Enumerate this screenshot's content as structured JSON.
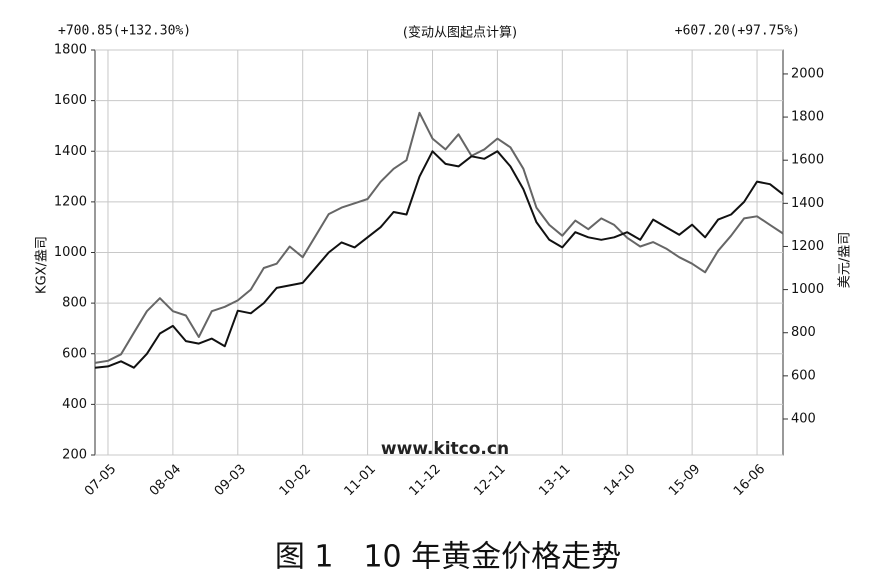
{
  "chart_data": {
    "type": "line",
    "subtitle": "(变动从图起点计算)",
    "left_note": "+700.85(+132.30%)",
    "right_note": "+607.20(+97.75%)",
    "ylabel": "KGX/盎司",
    "y2label": "美元/盎司",
    "watermark": "www.kitco.cn",
    "categories": [
      null,
      "07-05",
      null,
      null,
      null,
      null,
      "08-04",
      null,
      null,
      null,
      null,
      "09-03",
      null,
      null,
      null,
      null,
      "10-02",
      null,
      null,
      null,
      null,
      "11-01",
      null,
      null,
      null,
      null,
      "11-12",
      null,
      null,
      null,
      null,
      "12-11",
      null,
      null,
      null,
      null,
      "13-11",
      null,
      null,
      null,
      null,
      "14-10",
      null,
      null,
      null,
      null,
      "15-09",
      null,
      null,
      null,
      null,
      "16-06",
      null,
      null
    ],
    "series": [
      {
        "color": "#111111",
        "values": [
          545,
          550,
          570,
          545,
          600,
          680,
          710,
          650,
          640,
          660,
          630,
          770,
          760,
          800,
          860,
          870,
          880,
          940,
          1000,
          1040,
          1020,
          1060,
          1100,
          1160,
          1150,
          1300,
          1400,
          1350,
          1340,
          1380,
          1370,
          1400,
          1340,
          1250,
          1120,
          1050,
          1020,
          1080,
          1060,
          1050,
          1060,
          1080,
          1050,
          1130,
          1100,
          1070,
          1110,
          1060,
          1130,
          1150,
          1200,
          1280,
          1270,
          1230
        ]
      },
      {
        "color": "#666666",
        "axis": "y2",
        "values": [
          660,
          670,
          700,
          800,
          900,
          960,
          900,
          880,
          780,
          900,
          920,
          950,
          1000,
          1100,
          1120,
          1200,
          1150,
          1250,
          1350,
          1380,
          1400,
          1420,
          1500,
          1560,
          1600,
          1820,
          1700,
          1650,
          1720,
          1620,
          1650,
          1700,
          1660,
          1560,
          1380,
          1300,
          1250,
          1320,
          1280,
          1330,
          1300,
          1240,
          1200,
          1220,
          1190,
          1150,
          1120,
          1080,
          1180,
          1250,
          1330,
          1340,
          1300,
          1260
        ]
      }
    ],
    "ylim": [
      200,
      1800
    ],
    "yticks": [
      200,
      400,
      600,
      800,
      1000,
      1200,
      1400,
      1600,
      1800
    ],
    "y2lim": [
      233,
      2111
    ],
    "y2ticks": [
      400,
      600,
      800,
      1000,
      1200,
      1400,
      1600,
      1800,
      2000
    ],
    "grid": true
  },
  "caption": "图 1　10 年黄金价格走势"
}
